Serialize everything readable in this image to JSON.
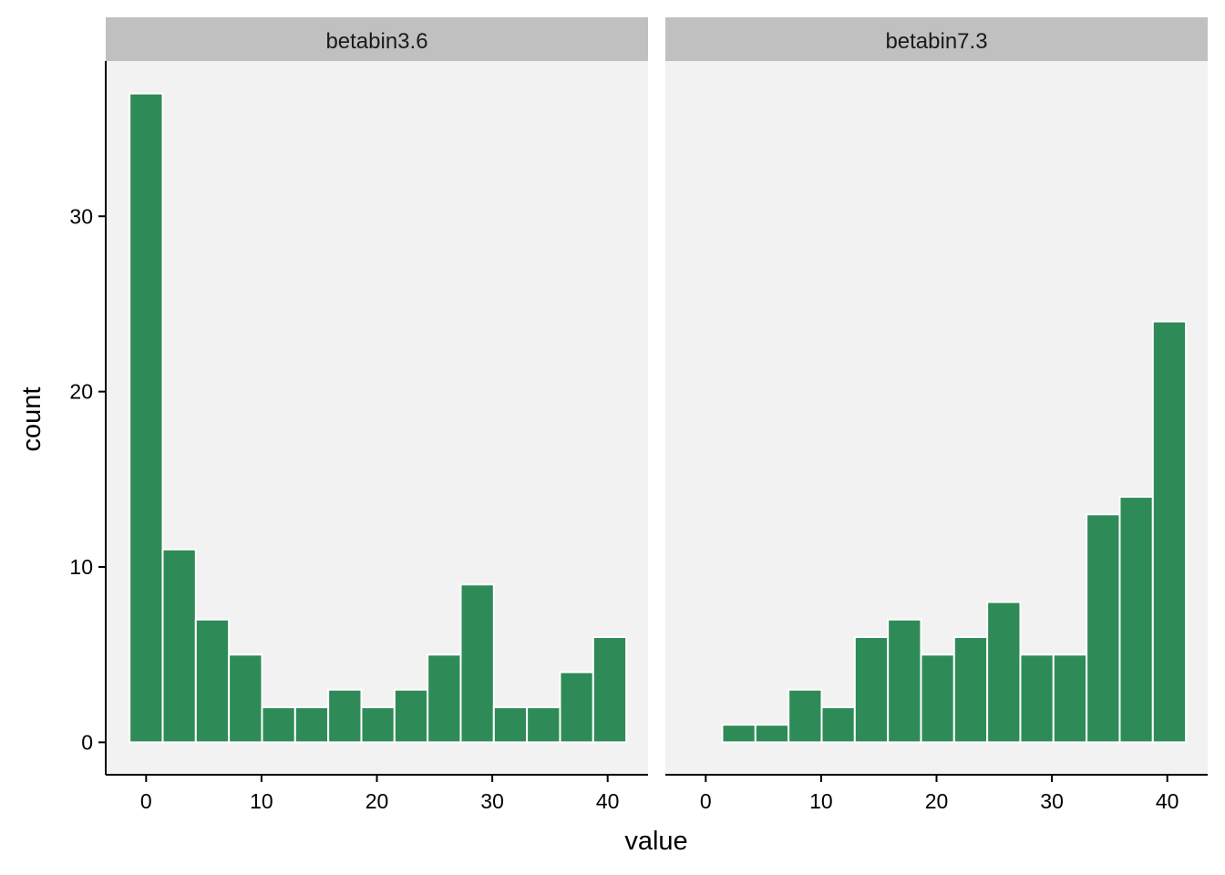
{
  "chart_data": {
    "type": "bar",
    "xlabel": "value",
    "ylabel": "count",
    "xlim": [
      -3.5,
      43.5
    ],
    "ylim": [
      -1.85,
      38.85
    ],
    "x_ticks": [
      0,
      10,
      20,
      30,
      40
    ],
    "y_ticks": [
      0,
      10,
      20,
      30
    ],
    "bin_width": 2.87,
    "bin_centers": [
      0,
      2.87,
      5.74,
      8.61,
      11.48,
      14.35,
      17.22,
      20.09,
      22.96,
      25.83,
      28.7,
      31.57,
      34.44,
      37.31,
      40.18
    ],
    "grid": false,
    "colors": {
      "bar": "#2e8b57",
      "bar_outline": "#ffffff",
      "panel": "#f2f2f2",
      "strip": "#c0c0c0"
    },
    "panels": [
      {
        "name": "betabin3.6",
        "values": [
          37,
          11,
          7,
          5,
          2,
          2,
          3,
          2,
          3,
          5,
          9,
          2,
          2,
          4,
          6
        ]
      },
      {
        "name": "betabin7.3",
        "values": [
          0,
          1,
          1,
          3,
          2,
          6,
          7,
          5,
          6,
          8,
          5,
          5,
          13,
          14,
          24
        ]
      }
    ]
  }
}
